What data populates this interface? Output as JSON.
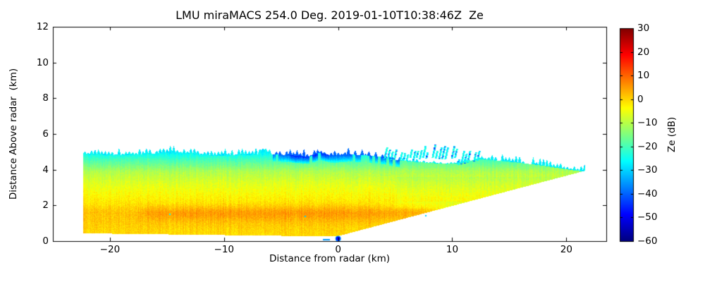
{
  "chart_data": {
    "type": "heatmap",
    "subtype": "radar-rhi-pseudocolor",
    "title": "LMU miraMACS 254.0 Deg. 2019-01-10T10:38:46Z  Ze",
    "xlabel": "Distance from radar (km)",
    "ylabel": "Distance Above radar  (km)",
    "xlim": [
      -25,
      23.5
    ],
    "ylim": [
      0,
      12
    ],
    "grid": false,
    "xticks": [
      {
        "v": -20,
        "label": "−20"
      },
      {
        "v": -10,
        "label": "−10"
      },
      {
        "v": 0,
        "label": "0"
      },
      {
        "v": 10,
        "label": "10"
      },
      {
        "v": 20,
        "label": "20"
      }
    ],
    "yticks": [
      {
        "v": 0,
        "label": "0"
      },
      {
        "v": 2,
        "label": "2"
      },
      {
        "v": 4,
        "label": "4"
      },
      {
        "v": 6,
        "label": "6"
      },
      {
        "v": 8,
        "label": "8"
      },
      {
        "v": 10,
        "label": "10"
      },
      {
        "v": 12,
        "label": "12"
      }
    ],
    "colorbar": {
      "label": "Ze (dB)",
      "vmin": -60,
      "vmax": 30,
      "ticks": [
        {
          "v": 30,
          "label": "30"
        },
        {
          "v": 20,
          "label": "20"
        },
        {
          "v": 10,
          "label": "10"
        },
        {
          "v": 0,
          "label": "0"
        },
        {
          "v": -10,
          "label": "−10"
        },
        {
          "v": -20,
          "label": "−20"
        },
        {
          "v": -30,
          "label": "−30"
        },
        {
          "v": -40,
          "label": "−40"
        },
        {
          "v": -50,
          "label": "−50"
        },
        {
          "v": -60,
          "label": "−60"
        }
      ],
      "colormap": "jet",
      "jet_stops": [
        [
          0.0,
          "#00007f"
        ],
        [
          0.125,
          "#0000ff"
        ],
        [
          0.375,
          "#00ffff"
        ],
        [
          0.625,
          "#ffff00"
        ],
        [
          0.875,
          "#ff0000"
        ],
        [
          1.0,
          "#7f0000"
        ]
      ]
    },
    "echo": {
      "seed": 11,
      "x_extent": [
        -22.35,
        21.65
      ],
      "bottom": {
        "base_km": 0.28,
        "left_slope_per_km": 0.008,
        "left_flat_until_km": 3,
        "right_slope": 0.169
      },
      "top_profile": [
        [
          -22.35,
          4.9
        ],
        [
          -20,
          4.8
        ],
        [
          -17.5,
          4.85
        ],
        [
          -15,
          4.95
        ],
        [
          -13,
          4.9
        ],
        [
          -11,
          4.78
        ],
        [
          -9,
          4.8
        ],
        [
          -7,
          4.85
        ],
        [
          -6.6,
          5.2
        ],
        [
          -6,
          4.88
        ],
        [
          -4,
          4.8
        ],
        [
          -2.5,
          4.72
        ],
        [
          -1.6,
          4.95
        ],
        [
          -0.5,
          4.78
        ],
        [
          1,
          4.85
        ],
        [
          2.5,
          4.8
        ],
        [
          4,
          4.7
        ],
        [
          5,
          4.55
        ],
        [
          6.5,
          4.45
        ],
        [
          8,
          4.38
        ],
        [
          9.5,
          4.32
        ],
        [
          10.5,
          4.35
        ],
        [
          11.5,
          4.5
        ],
        [
          12.5,
          4.6
        ],
        [
          14,
          4.5
        ],
        [
          16,
          4.38
        ],
        [
          18,
          4.22
        ],
        [
          20,
          4.02
        ],
        [
          21.65,
          3.88
        ]
      ],
      "height_db_profile": [
        [
          0,
          -1
        ],
        [
          0.6,
          0
        ],
        [
          1.1,
          1
        ],
        [
          1.6,
          1.5
        ],
        [
          2.1,
          -1.5
        ],
        [
          2.7,
          -4
        ],
        [
          3.3,
          -7
        ],
        [
          3.9,
          -11
        ],
        [
          4.25,
          -16
        ],
        [
          4.55,
          -20
        ],
        [
          4.85,
          -25
        ],
        [
          5.1,
          -28
        ],
        [
          5.6,
          -31
        ]
      ],
      "orange_streak": {
        "x_range": [
          -18,
          9
        ],
        "y_center": 1.55,
        "sigma": 0.3,
        "db_boost": 3.5
      },
      "noise_db_cell": 2.2,
      "noise_db_column": 1.6,
      "blue_band": {
        "x_range": [
          -5.8,
          5.4
        ],
        "thickness_km": 0.4,
        "db": -40,
        "dark_x_range": [
          -4.2,
          -0.8
        ],
        "dark_db": -46
      },
      "top_teeth": {
        "period_km": 0.3,
        "height_km": [
          0.06,
          0.42
        ],
        "db": -27,
        "missing_prob": 0.1,
        "damp_x_range": [
          4.0,
          12.3
        ],
        "damp": 0.45
      },
      "detached_spikes": {
        "x_range": [
          4.0,
          9.4
        ],
        "gap_x_range": [
          9.4,
          10.4
        ],
        "attached_x_range": [
          10.4,
          12.3
        ],
        "base_km": 4.55,
        "height_km": [
          0.25,
          0.7
        ],
        "slant": 0.35,
        "width_km": 0.17,
        "spacing_km": 0.28,
        "db": -26,
        "blue_dot_db": -42
      },
      "origin_dot": {
        "x": 0.0,
        "y": 0.14,
        "radius_px": 3,
        "db": -48,
        "rim_db": -34
      },
      "ground_dash": {
        "x_range": [
          -1.35,
          -0.75
        ],
        "y": 0.06,
        "db": -35
      },
      "specks": [
        {
          "x": -2.95,
          "y": 1.42,
          "db": -30
        },
        {
          "x": -14.8,
          "y": 1.55,
          "db": -26
        },
        {
          "x": 7.6,
          "y": 1.45,
          "db": -30
        }
      ]
    }
  }
}
